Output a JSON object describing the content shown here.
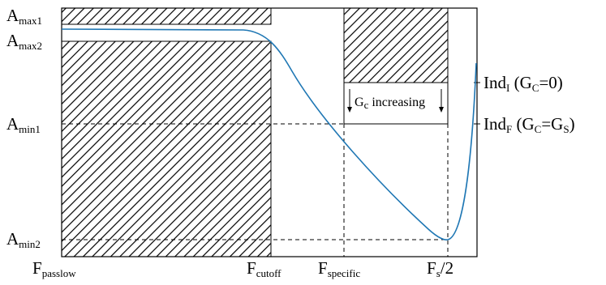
{
  "y_labels": {
    "amax1": {
      "base": "A",
      "sub": "max1"
    },
    "amax2": {
      "base": "A",
      "sub": "max2"
    },
    "amin1": {
      "base": "A",
      "sub": "min1"
    },
    "amin2": {
      "base": "A",
      "sub": "min2"
    }
  },
  "x_labels": {
    "passlow": {
      "base": "F",
      "sub": "passlow"
    },
    "cutoff": {
      "base": "F",
      "sub": "cutoff"
    },
    "specific": {
      "base": "F",
      "sub": "specific"
    },
    "fs2": {
      "base": "F",
      "sub": "s",
      "tail": "/2"
    }
  },
  "right_labels": {
    "ind_i": {
      "base": "Ind",
      "sub": "I",
      "paren_open": " (G",
      "paren_sub": "C",
      "paren_rest": "=0)"
    },
    "ind_f": {
      "base": "Ind",
      "sub": "F",
      "paren_open": " (G",
      "paren_sub": "C",
      "paren_mid": "=G",
      "paren_sub2": "S",
      "paren_close": ")"
    }
  },
  "annotation": {
    "base": "G",
    "sub": "c",
    "rest": " increasing"
  },
  "colors": {
    "curve": "#1f77b4",
    "frame": "#000000",
    "hatch": "#000000"
  }
}
